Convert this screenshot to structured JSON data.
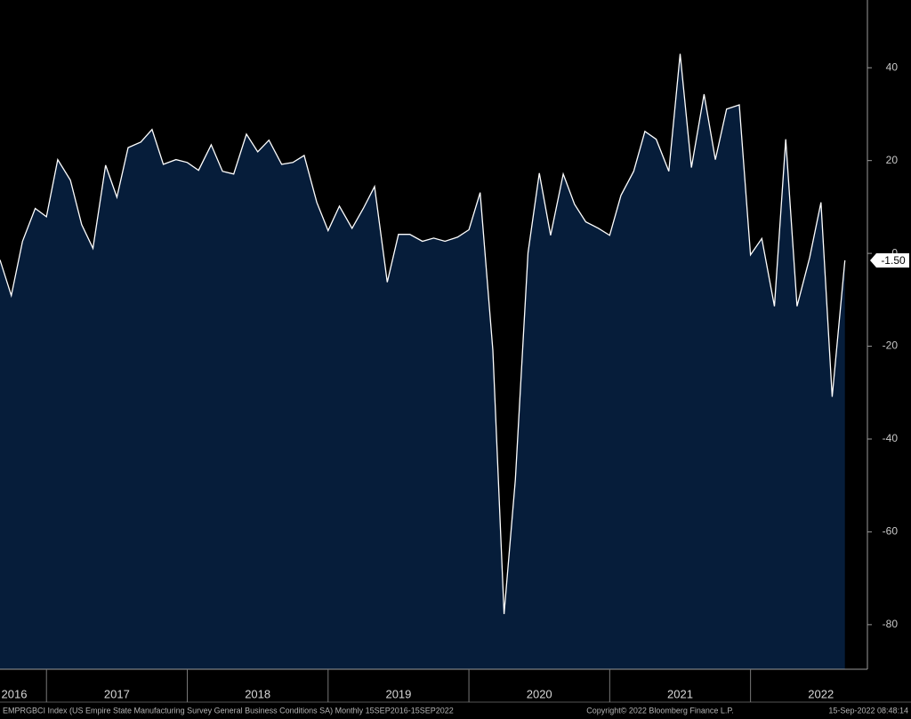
{
  "chart_data": {
    "type": "area",
    "x": [
      2016.67,
      2016.75,
      2016.83,
      2016.92,
      2017.0,
      2017.08,
      2017.17,
      2017.25,
      2017.33,
      2017.42,
      2017.5,
      2017.58,
      2017.67,
      2017.75,
      2017.83,
      2017.92,
      2018.0,
      2018.08,
      2018.17,
      2018.25,
      2018.33,
      2018.42,
      2018.5,
      2018.58,
      2018.67,
      2018.75,
      2018.83,
      2018.92,
      2019.0,
      2019.08,
      2019.17,
      2019.25,
      2019.33,
      2019.42,
      2019.5,
      2019.58,
      2019.67,
      2019.75,
      2019.83,
      2019.92,
      2020.0,
      2020.08,
      2020.17,
      2020.25,
      2020.33,
      2020.42,
      2020.5,
      2020.58,
      2020.67,
      2020.75,
      2020.83,
      2020.92,
      2021.0,
      2021.08,
      2021.17,
      2021.25,
      2021.33,
      2021.42,
      2021.5,
      2021.58,
      2021.67,
      2021.75,
      2021.83,
      2021.92,
      2022.0,
      2022.08,
      2022.17,
      2022.25,
      2022.33,
      2022.42,
      2022.5,
      2022.58,
      2022.67
    ],
    "series": [
      {
        "color": "#ffffff",
        "fill": "#061d3a",
        "values": [
          -1.4,
          -9.1,
          2.6,
          9.7,
          7.9,
          20.2,
          15.8,
          6.2,
          1.1,
          19.0,
          12.1,
          22.8,
          24.0,
          26.7,
          19.2,
          20.2,
          19.6,
          17.9,
          23.4,
          17.7,
          17.1,
          25.7,
          21.9,
          24.4,
          19.2,
          19.6,
          21.1,
          11.0,
          4.9,
          10.2,
          5.4,
          9.7,
          14.4,
          -6.2,
          4.1,
          4.1,
          2.6,
          3.3,
          2.6,
          3.5,
          5.1,
          13.1,
          -20.9,
          -77.7,
          -48.7,
          0.1,
          17.3,
          3.9,
          17.1,
          10.6,
          6.8,
          5.4,
          3.9,
          12.5,
          17.7,
          26.3,
          24.6,
          17.7,
          43.0,
          18.5,
          34.3,
          20.2,
          31.1,
          32.0,
          -0.3,
          3.2,
          -11.4,
          24.6,
          -11.4,
          -0.9,
          11.0,
          -30.9,
          -1.5
        ],
        "value_labels": [
          null,
          null,
          null,
          null,
          null,
          null,
          null,
          null,
          null,
          null,
          null,
          null,
          null,
          null,
          null,
          null,
          null,
          null,
          null,
          null,
          null,
          null,
          null,
          null,
          null,
          null,
          null,
          null,
          null,
          null,
          null,
          null,
          null,
          null,
          null,
          null,
          null,
          null,
          null,
          null,
          null,
          null,
          null,
          null,
          null,
          null,
          null,
          null,
          null,
          null,
          null,
          null,
          null,
          null,
          null,
          null,
          null,
          null,
          null,
          null,
          null,
          null,
          null,
          null,
          null,
          null,
          null,
          null,
          null,
          null,
          null,
          null,
          "-1.50"
        ]
      }
    ],
    "xlim": [
      2016.67,
      2022.83
    ],
    "xticks": [
      2016,
      2017,
      2018,
      2019,
      2020,
      2021,
      2022
    ],
    "ylim": [
      -89.6,
      54.6
    ],
    "yticks": [
      40,
      20,
      0,
      -20,
      -40,
      -60,
      -80
    ],
    "footer": {
      "left": "EMPRGBCI Index (US Empire State Manufacturing Survey General Business Conditions SA)  Monthly 15SEP2016-15SEP2022",
      "center": "Copyright© 2022 Bloomberg Finance L.P.",
      "right": "15-Sep-2022 08:48:14"
    }
  }
}
